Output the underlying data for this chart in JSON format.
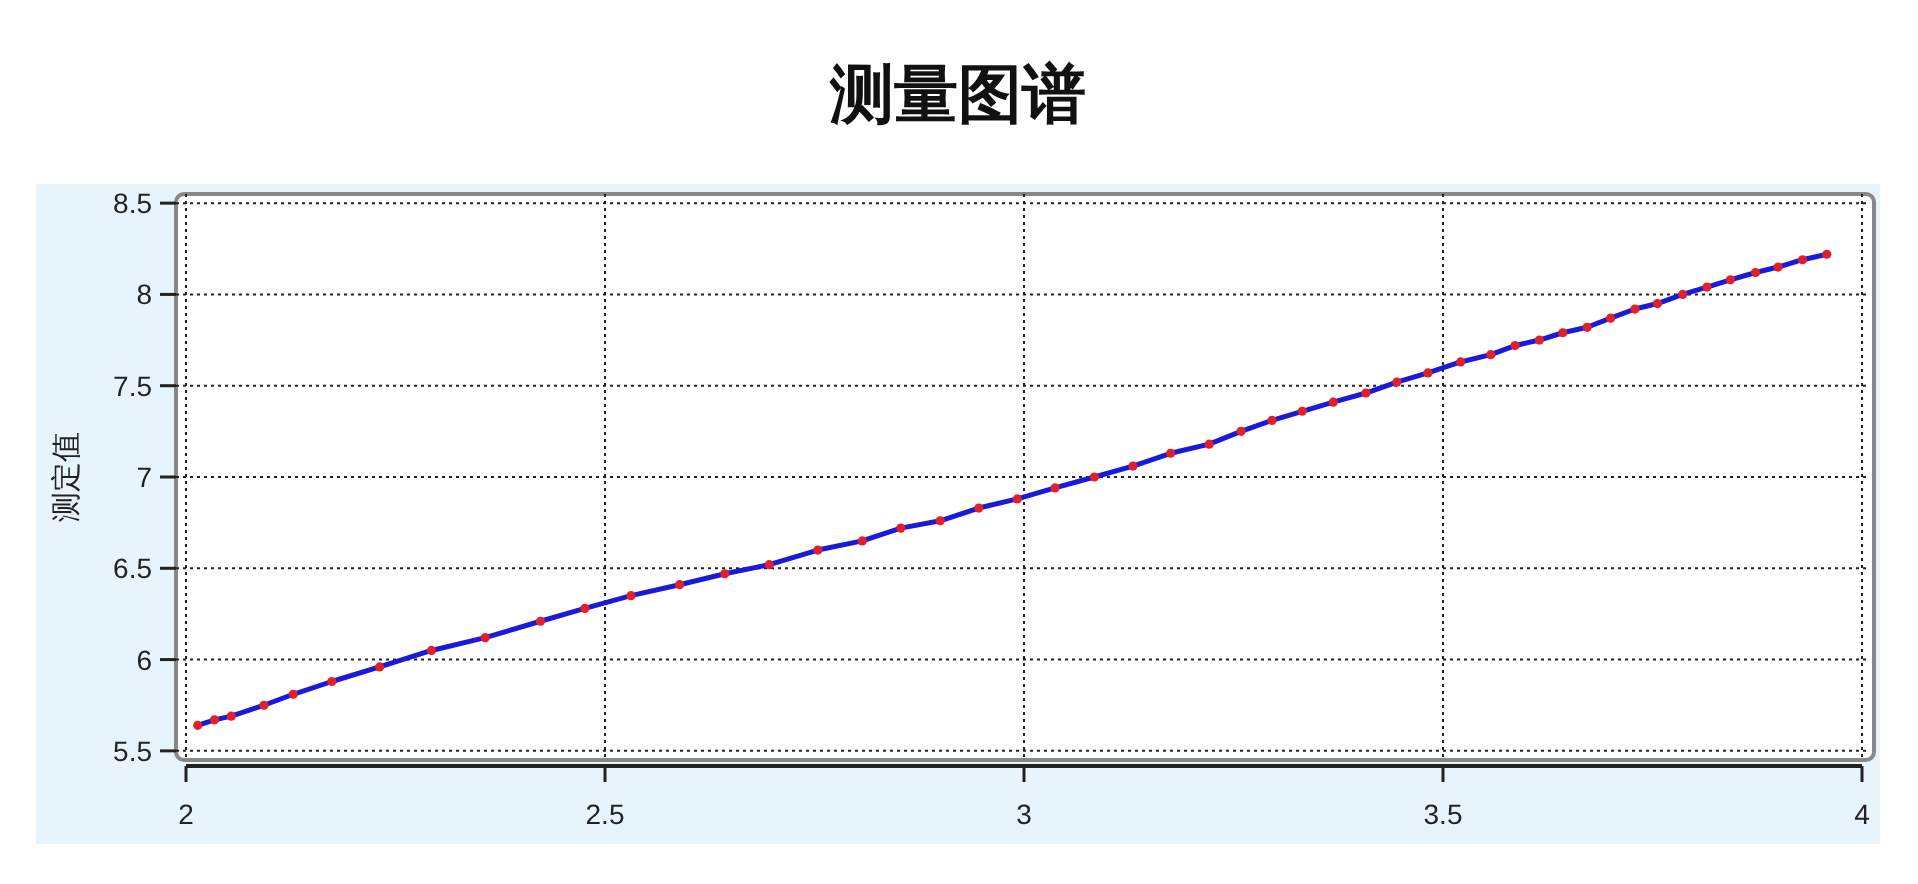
{
  "chart_data": {
    "type": "line",
    "title": "测量图谱",
    "ylabel": "测定值",
    "xlim": [
      2,
      4
    ],
    "xticks": [
      2,
      2.5,
      3,
      3.5,
      4
    ],
    "ylim": [
      5.45,
      8.55
    ],
    "yticks": [
      5.5,
      6,
      6.5,
      7,
      7.5,
      8,
      8.5
    ],
    "grid": true,
    "marker": "circle",
    "line_style": "solid",
    "series": [
      {
        "color": "#1a1ad8",
        "colors": [
          "#e0202a",
          "#e0202a",
          "#e0202a",
          "#e0202a",
          "#e0202a",
          "#e0202a",
          "#e0202a",
          "#e0202a",
          "#e0202a",
          "#e0202a",
          "#e0202a",
          "#e0202a",
          "#e0202a",
          "#e0202a",
          "#e0202a",
          "#e0202a",
          "#e0202a",
          "#e0202a",
          "#e0202a",
          "#e0202a",
          "#e0202a",
          "#e0202a",
          "#e0202a",
          "#e0202a",
          "#e0202a",
          "#e0202a",
          "#e0202a",
          "#e0202a",
          "#e0202a",
          "#e0202a",
          "#e0202a",
          "#e0202a",
          "#e0202a",
          "#e0202a",
          "#e0202a",
          "#e0202a",
          "#e0202a",
          "#e0202a",
          "#e0202a",
          "#e0202a",
          "#e0202a",
          "#e0202a",
          "#e0202a",
          "#e0202a",
          "#e0202a",
          "#e0202a",
          "#e0202a",
          "#e0202a",
          "#e0202a"
        ],
        "x": [
          2.014,
          2.034,
          2.054,
          2.093,
          2.128,
          2.174,
          2.231,
          2.293,
          2.357,
          2.423,
          2.476,
          2.531,
          2.589,
          2.643,
          2.696,
          2.754,
          2.807,
          2.853,
          2.9,
          2.946,
          2.992,
          3.037,
          3.084,
          3.13,
          3.175,
          3.221,
          3.259,
          3.296,
          3.332,
          3.369,
          3.408,
          3.445,
          3.482,
          3.521,
          3.557,
          3.586,
          3.615,
          3.643,
          3.672,
          3.7,
          3.729,
          3.756,
          3.786,
          3.815,
          3.843,
          3.873,
          3.9,
          3.929,
          3.958
        ],
        "values": [
          5.64,
          5.67,
          5.69,
          5.75,
          5.81,
          5.88,
          5.96,
          6.05,
          6.12,
          6.21,
          6.28,
          6.35,
          6.41,
          6.47,
          6.52,
          6.6,
          6.65,
          6.72,
          6.76,
          6.83,
          6.88,
          6.94,
          7.0,
          7.06,
          7.13,
          7.18,
          7.25,
          7.31,
          7.36,
          7.41,
          7.46,
          7.52,
          7.57,
          7.63,
          7.67,
          7.72,
          7.75,
          7.79,
          7.82,
          7.87,
          7.92,
          7.95,
          8.0,
          8.04,
          8.08,
          8.12,
          8.15,
          8.19,
          8.22
        ]
      }
    ]
  }
}
